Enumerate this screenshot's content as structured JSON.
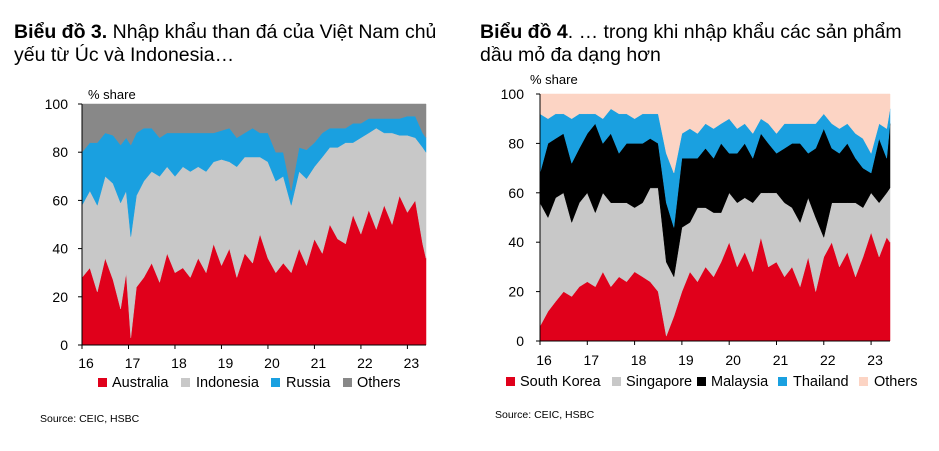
{
  "chart_data": [
    {
      "type": "area",
      "stacked": true,
      "title_prefix": "Biểu đồ 3.",
      "title": "Nhập khẩu than đá của Việt Nam chủ yếu từ Úc và Indonesia…",
      "ylabel": "% share",
      "ylim": [
        0,
        100
      ],
      "yticks": [
        "0",
        "20",
        "40",
        "60",
        "80",
        "100"
      ],
      "xlim": [
        2016,
        2023.4
      ],
      "xticks": [
        "16",
        "17",
        "18",
        "19",
        "20",
        "21",
        "22",
        "23"
      ],
      "legend_position": "bottom",
      "source": "Source: CEIC, HSBC",
      "x": [
        2016.0,
        2016.17,
        2016.33,
        2016.5,
        2016.67,
        2016.83,
        2016.95,
        2017.05,
        2017.17,
        2017.33,
        2017.5,
        2017.67,
        2017.83,
        2018.0,
        2018.17,
        2018.33,
        2018.5,
        2018.67,
        2018.83,
        2019.0,
        2019.17,
        2019.33,
        2019.5,
        2019.67,
        2019.83,
        2020.0,
        2020.17,
        2020.33,
        2020.5,
        2020.67,
        2020.83,
        2021.0,
        2021.17,
        2021.33,
        2021.5,
        2021.67,
        2021.83,
        2022.0,
        2022.17,
        2022.33,
        2022.5,
        2022.67,
        2022.83,
        2023.0,
        2023.17,
        2023.33,
        2023.4
      ],
      "series": [
        {
          "name": "Australia",
          "color": "#e0001b",
          "values": [
            28,
            32,
            22,
            36,
            27,
            15,
            30,
            3,
            24,
            28,
            34,
            26,
            38,
            30,
            32,
            28,
            36,
            30,
            42,
            33,
            40,
            28,
            38,
            34,
            46,
            36,
            30,
            34,
            30,
            40,
            33,
            44,
            38,
            50,
            44,
            42,
            54,
            46,
            56,
            48,
            58,
            50,
            62,
            55,
            60,
            42,
            36
          ]
        },
        {
          "name": "Indonesia",
          "color": "#c8c8c8",
          "values": [
            30,
            32,
            36,
            34,
            40,
            44,
            34,
            42,
            38,
            40,
            38,
            44,
            36,
            40,
            42,
            44,
            38,
            42,
            34,
            44,
            36,
            46,
            40,
            44,
            32,
            40,
            38,
            36,
            28,
            32,
            36,
            30,
            40,
            32,
            38,
            42,
            30,
            40,
            32,
            42,
            30,
            38,
            25,
            32,
            26,
            40,
            44
          ]
        },
        {
          "name": "Russia",
          "color": "#1aa0e0",
          "values": [
            22,
            20,
            26,
            18,
            20,
            24,
            22,
            38,
            26,
            22,
            18,
            16,
            14,
            18,
            14,
            16,
            14,
            16,
            12,
            12,
            14,
            12,
            10,
            12,
            10,
            12,
            12,
            10,
            6,
            10,
            12,
            10,
            10,
            8,
            8,
            6,
            8,
            6,
            6,
            4,
            6,
            6,
            7,
            8,
            9,
            6,
            6
          ]
        },
        {
          "name": "Others",
          "color": "#888888",
          "values": [
            20,
            16,
            16,
            12,
            13,
            17,
            14,
            17,
            12,
            10,
            10,
            14,
            12,
            12,
            12,
            12,
            12,
            12,
            12,
            11,
            10,
            14,
            12,
            10,
            12,
            12,
            20,
            20,
            36,
            18,
            19,
            16,
            12,
            10,
            10,
            10,
            8,
            8,
            6,
            6,
            6,
            6,
            6,
            5,
            5,
            12,
            14
          ]
        }
      ]
    },
    {
      "type": "area",
      "stacked": true,
      "title_prefix": "Biểu đồ 4",
      "title": ". … trong khi nhập khẩu các sản phẩm dầu mỏ đa dạng hơn",
      "ylabel": "% share",
      "ylim": [
        0,
        100
      ],
      "yticks": [
        "0",
        "20",
        "40",
        "60",
        "80",
        "100"
      ],
      "xlim": [
        2016,
        2023.4
      ],
      "xticks": [
        "16",
        "17",
        "18",
        "19",
        "20",
        "21",
        "22",
        "23"
      ],
      "legend_position": "bottom",
      "source": "Source: CEIC, HSBC",
      "x": [
        2016.0,
        2016.17,
        2016.33,
        2016.5,
        2016.67,
        2016.83,
        2017.0,
        2017.17,
        2017.33,
        2017.5,
        2017.67,
        2017.83,
        2018.0,
        2018.17,
        2018.33,
        2018.5,
        2018.67,
        2018.83,
        2019.0,
        2019.17,
        2019.33,
        2019.5,
        2019.67,
        2019.83,
        2020.0,
        2020.17,
        2020.33,
        2020.5,
        2020.67,
        2020.83,
        2021.0,
        2021.17,
        2021.33,
        2021.5,
        2021.67,
        2021.83,
        2022.0,
        2022.17,
        2022.33,
        2022.5,
        2022.67,
        2022.83,
        2023.0,
        2023.17,
        2023.33,
        2023.4
      ],
      "series": [
        {
          "name": "South Korea",
          "color": "#e0001b",
          "values": [
            6,
            12,
            16,
            20,
            18,
            22,
            24,
            22,
            28,
            22,
            26,
            24,
            28,
            26,
            24,
            20,
            2,
            10,
            20,
            28,
            24,
            30,
            26,
            32,
            40,
            30,
            36,
            28,
            42,
            30,
            32,
            26,
            30,
            22,
            34,
            20,
            34,
            40,
            30,
            36,
            26,
            34,
            44,
            34,
            42,
            40
          ]
        },
        {
          "name": "Singapore",
          "color": "#c8c8c8",
          "values": [
            50,
            38,
            42,
            40,
            30,
            34,
            36,
            30,
            32,
            34,
            30,
            32,
            26,
            30,
            38,
            42,
            30,
            16,
            26,
            20,
            30,
            24,
            26,
            20,
            20,
            26,
            22,
            28,
            18,
            30,
            28,
            30,
            24,
            26,
            24,
            30,
            8,
            16,
            26,
            20,
            30,
            20,
            16,
            22,
            18,
            22
          ]
        },
        {
          "name": "Malaysia",
          "color": "#000000",
          "values": [
            12,
            30,
            24,
            24,
            24,
            22,
            24,
            36,
            20,
            28,
            20,
            24,
            26,
            24,
            20,
            18,
            24,
            20,
            28,
            26,
            20,
            24,
            22,
            28,
            16,
            20,
            22,
            18,
            24,
            20,
            16,
            22,
            26,
            32,
            18,
            28,
            44,
            22,
            20,
            24,
            18,
            16,
            8,
            26,
            14,
            26
          ]
        },
        {
          "name": "Thailand",
          "color": "#1aa0e0",
          "values": [
            24,
            10,
            10,
            8,
            18,
            14,
            8,
            4,
            10,
            10,
            16,
            12,
            10,
            12,
            10,
            12,
            20,
            22,
            10,
            12,
            10,
            10,
            12,
            8,
            14,
            10,
            8,
            10,
            6,
            8,
            8,
            10,
            8,
            8,
            12,
            10,
            6,
            10,
            10,
            8,
            10,
            12,
            8,
            6,
            12,
            6
          ]
        },
        {
          "name": "Others",
          "color": "#fcd4c4",
          "values": [
            8,
            10,
            8,
            8,
            10,
            8,
            8,
            8,
            10,
            6,
            8,
            8,
            10,
            8,
            8,
            8,
            24,
            32,
            16,
            14,
            16,
            12,
            14,
            12,
            10,
            14,
            12,
            16,
            10,
            12,
            16,
            12,
            12,
            12,
            12,
            12,
            8,
            12,
            14,
            12,
            16,
            18,
            24,
            12,
            14,
            6
          ]
        }
      ]
    }
  ]
}
